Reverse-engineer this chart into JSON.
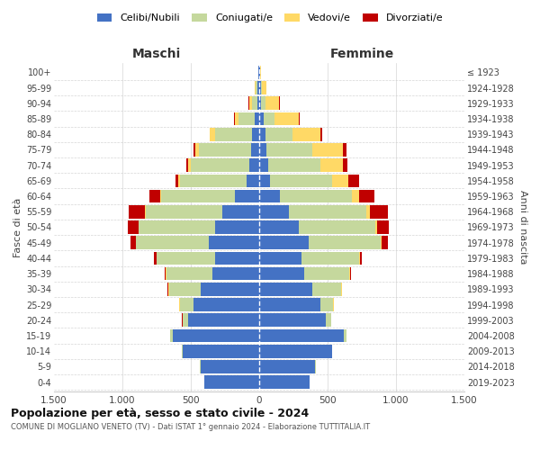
{
  "age_groups": [
    "0-4",
    "5-9",
    "10-14",
    "15-19",
    "20-24",
    "25-29",
    "30-34",
    "35-39",
    "40-44",
    "45-49",
    "50-54",
    "55-59",
    "60-64",
    "65-69",
    "70-74",
    "75-79",
    "80-84",
    "85-89",
    "90-94",
    "95-99",
    "100+"
  ],
  "birth_years": [
    "2019-2023",
    "2014-2018",
    "2009-2013",
    "2004-2008",
    "1999-2003",
    "1994-1998",
    "1989-1993",
    "1984-1988",
    "1979-1983",
    "1974-1978",
    "1969-1973",
    "1964-1968",
    "1959-1963",
    "1954-1958",
    "1949-1953",
    "1944-1948",
    "1939-1943",
    "1934-1938",
    "1929-1933",
    "1924-1928",
    "≤ 1923"
  ],
  "males": {
    "celibi": [
      400,
      430,
      560,
      630,
      520,
      480,
      430,
      340,
      320,
      370,
      320,
      270,
      180,
      90,
      70,
      60,
      50,
      30,
      15,
      10,
      5
    ],
    "coniugati": [
      1,
      2,
      5,
      20,
      40,
      100,
      230,
      340,
      430,
      530,
      560,
      560,
      540,
      490,
      430,
      380,
      270,
      120,
      40,
      15,
      2
    ],
    "vedovi": [
      0,
      0,
      0,
      1,
      2,
      3,
      2,
      2,
      2,
      2,
      3,
      5,
      5,
      10,
      20,
      30,
      40,
      30,
      20,
      5,
      0
    ],
    "divorziati": [
      0,
      0,
      0,
      2,
      3,
      5,
      8,
      10,
      15,
      40,
      80,
      120,
      80,
      20,
      10,
      8,
      5,
      3,
      2,
      1,
      0
    ]
  },
  "females": {
    "nubili": [
      370,
      410,
      530,
      620,
      490,
      450,
      390,
      330,
      310,
      360,
      290,
      220,
      150,
      80,
      65,
      55,
      45,
      30,
      15,
      10,
      5
    ],
    "coniugate": [
      1,
      2,
      4,
      15,
      35,
      90,
      210,
      330,
      420,
      530,
      560,
      560,
      530,
      450,
      380,
      330,
      200,
      80,
      30,
      10,
      2
    ],
    "vedove": [
      0,
      0,
      0,
      1,
      2,
      3,
      3,
      3,
      5,
      8,
      15,
      30,
      50,
      120,
      170,
      230,
      200,
      180,
      100,
      30,
      3
    ],
    "divorziate": [
      0,
      0,
      0,
      1,
      2,
      3,
      5,
      10,
      15,
      40,
      80,
      130,
      110,
      80,
      30,
      25,
      15,
      5,
      5,
      2,
      0
    ]
  },
  "colors": {
    "celibi_nubili": "#4472C4",
    "coniugati": "#C5D89D",
    "vedovi": "#FFD966",
    "divorziati": "#C00000"
  },
  "title1": "Popolazione per età, sesso e stato civile - 2024",
  "title2": "COMUNE DI MOGLIANO VENETO (TV) - Dati ISTAT 1° gennaio 2024 - Elaborazione TUTTITALIA.IT",
  "xlabel_left": "Maschi",
  "xlabel_right": "Femmine",
  "ylabel_left": "Fasce di età",
  "ylabel_right": "Anni di nascita",
  "xlim": 1500,
  "legend_labels": [
    "Celibi/Nubili",
    "Coniugati/e",
    "Vedovi/e",
    "Divorziati/e"
  ],
  "background_color": "#ffffff",
  "grid_color": "#cccccc"
}
